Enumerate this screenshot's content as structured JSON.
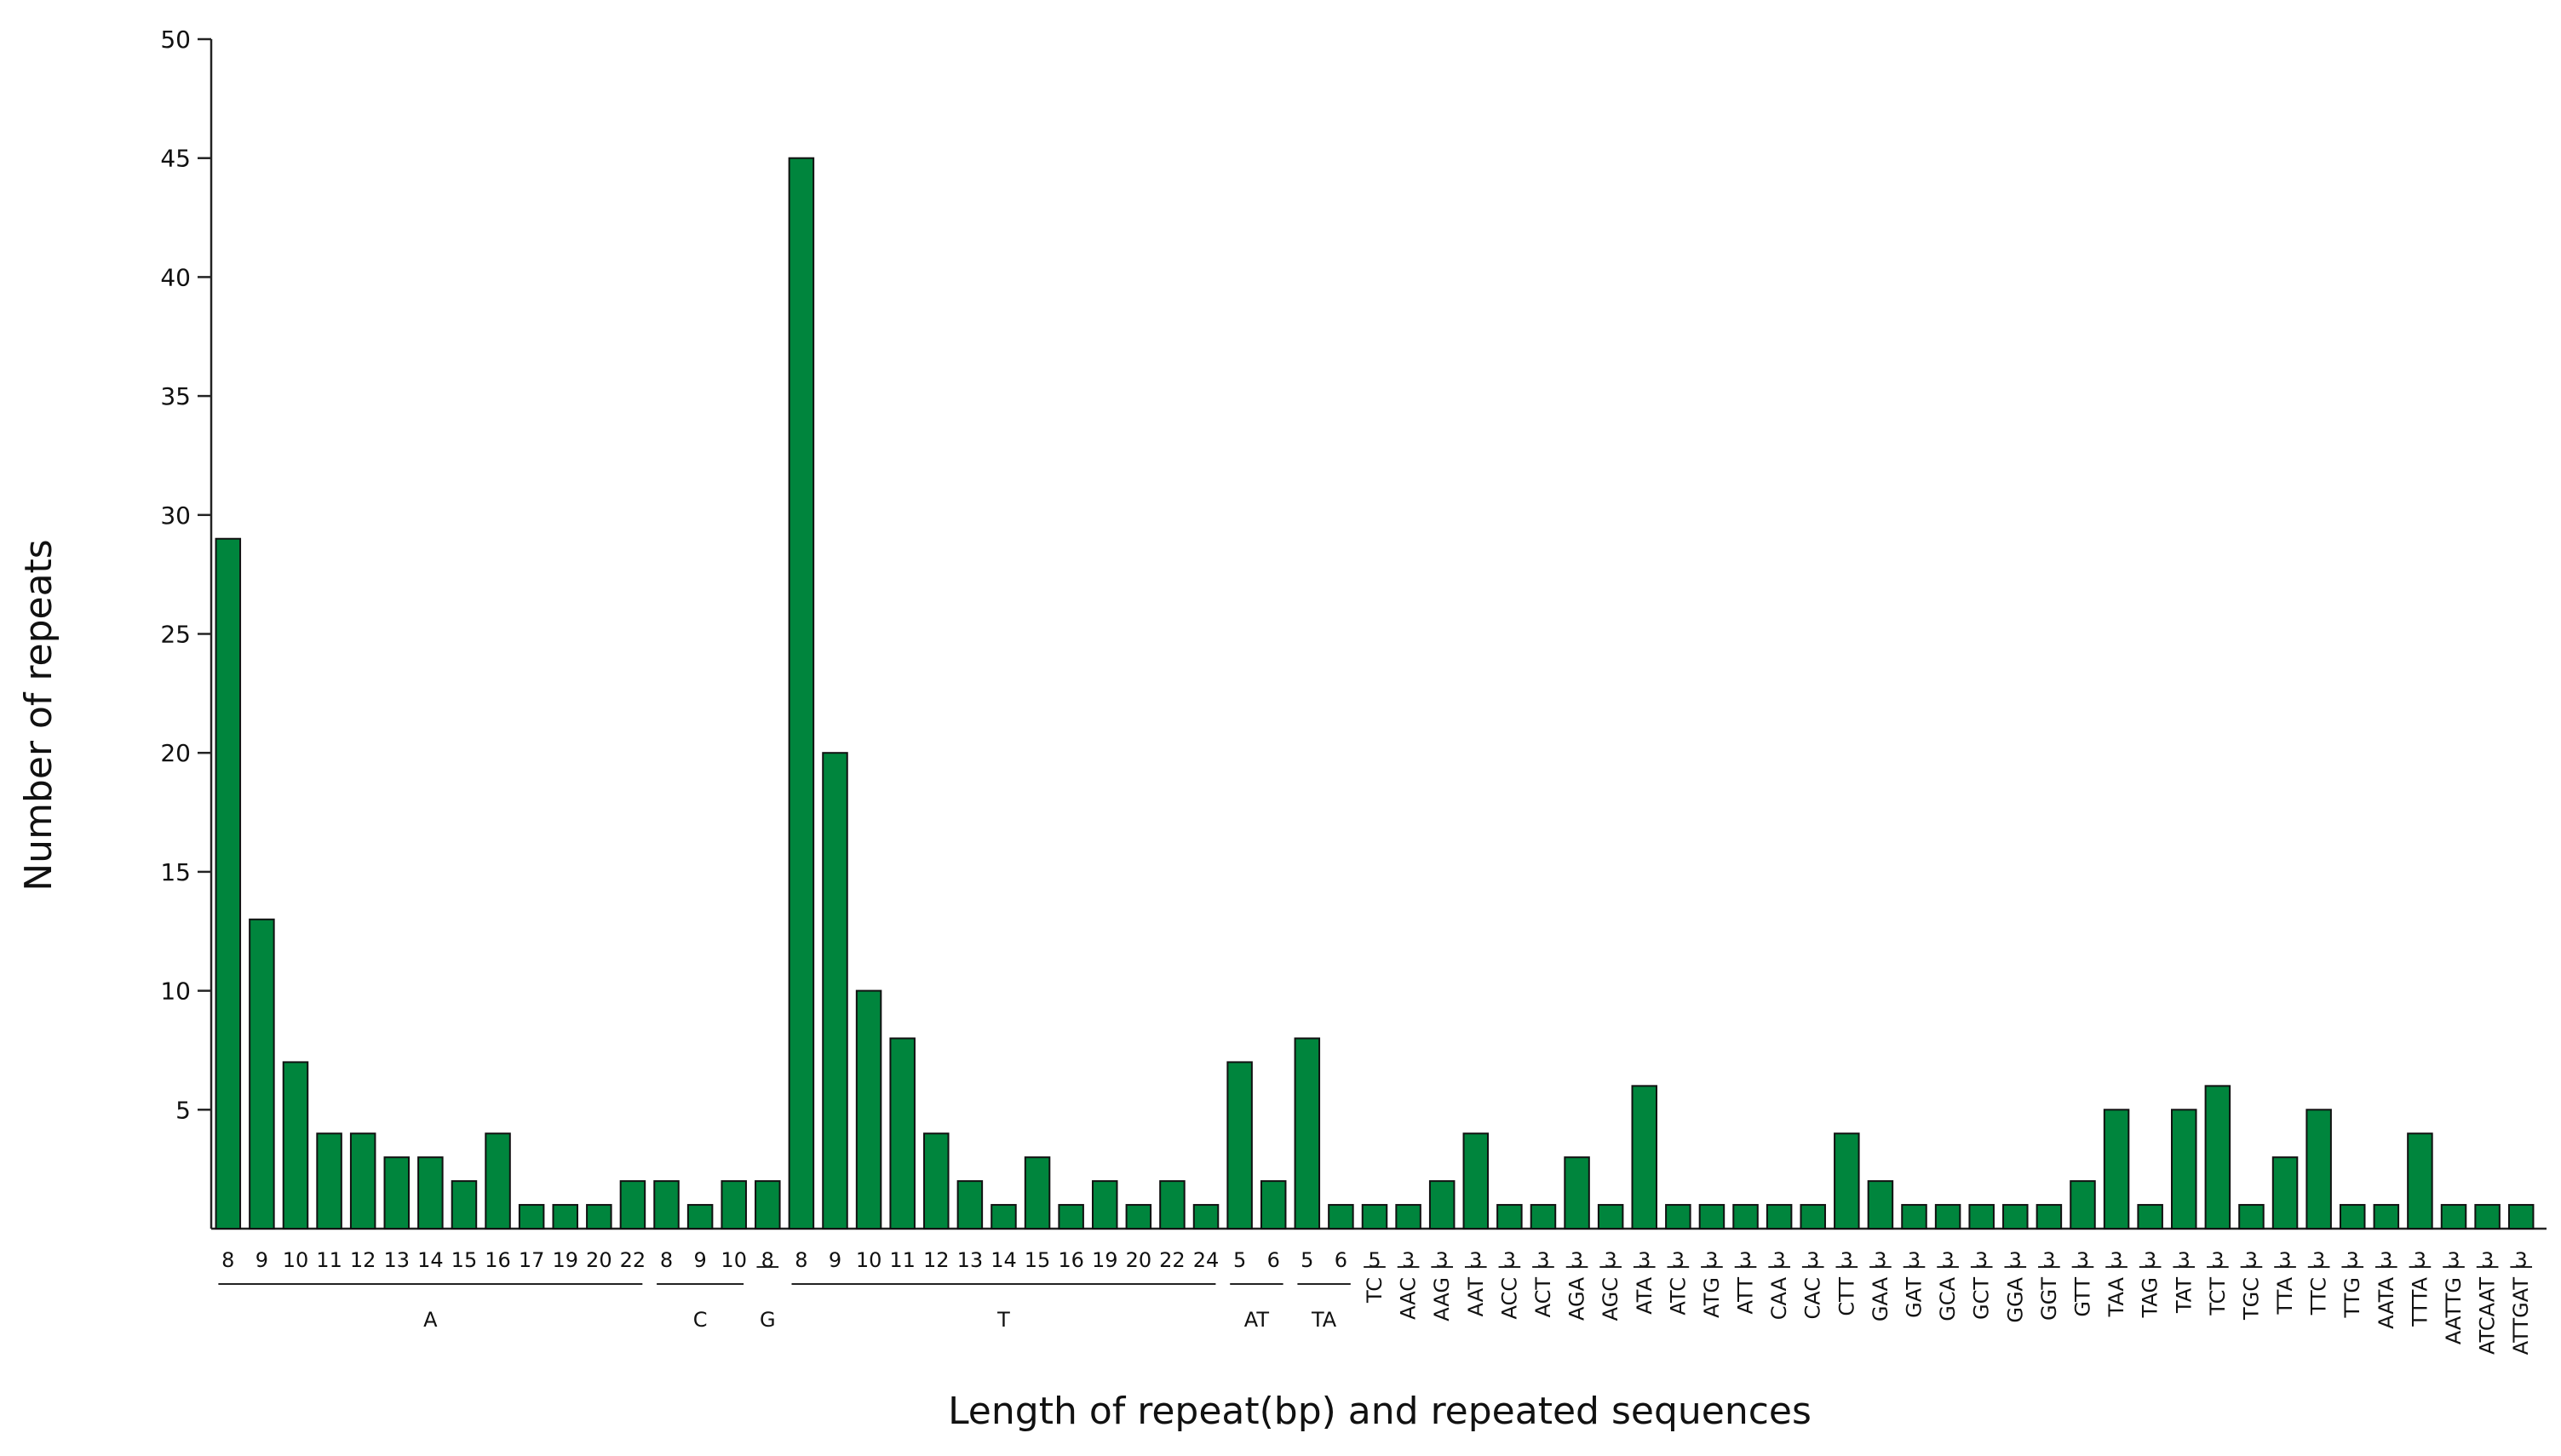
{
  "chart_data": {
    "type": "bar",
    "title": "",
    "xlabel": "Length of repeat(bp) and repeated sequences",
    "ylabel": "Number of repeats",
    "ylim": [
      0,
      50
    ],
    "yticks": [
      5,
      10,
      15,
      20,
      25,
      30,
      35,
      40,
      45,
      50
    ],
    "grid": false,
    "legend": "none",
    "bar_color": "#00853d",
    "groups": [
      {
        "name": "A",
        "categories": [
          "8",
          "9",
          "10",
          "11",
          "12",
          "13",
          "14",
          "15",
          "16",
          "17",
          "19",
          "20",
          "22"
        ],
        "values": [
          29,
          13,
          7,
          4,
          4,
          3,
          3,
          2,
          4,
          1,
          1,
          1,
          2
        ]
      },
      {
        "name": "C",
        "categories": [
          "8",
          "9",
          "10"
        ],
        "values": [
          2,
          1,
          2
        ]
      },
      {
        "name": "G",
        "categories": [
          "8"
        ],
        "values": [
          2
        ]
      },
      {
        "name": "T",
        "categories": [
          "8",
          "9",
          "10",
          "11",
          "12",
          "13",
          "14",
          "15",
          "16",
          "19",
          "20",
          "22",
          "24"
        ],
        "values": [
          45,
          20,
          10,
          8,
          4,
          2,
          1,
          3,
          1,
          2,
          1,
          2,
          1
        ]
      },
      {
        "name": "AT",
        "categories": [
          "5",
          "6"
        ],
        "values": [
          7,
          2
        ]
      },
      {
        "name": "TA",
        "categories": [
          "5",
          "6"
        ],
        "values": [
          8,
          1
        ]
      },
      {
        "name": "TC",
        "categories": [
          "5"
        ],
        "values": [
          1
        ]
      },
      {
        "name": "AAC",
        "categories": [
          "3"
        ],
        "values": [
          1
        ]
      },
      {
        "name": "AAG",
        "categories": [
          "3"
        ],
        "values": [
          2
        ]
      },
      {
        "name": "AAT",
        "categories": [
          "3"
        ],
        "values": [
          4
        ]
      },
      {
        "name": "ACC",
        "categories": [
          "3"
        ],
        "values": [
          1
        ]
      },
      {
        "name": "ACT",
        "categories": [
          "3"
        ],
        "values": [
          1
        ]
      },
      {
        "name": "AGA",
        "categories": [
          "3"
        ],
        "values": [
          3
        ]
      },
      {
        "name": "AGC",
        "categories": [
          "3"
        ],
        "values": [
          1
        ]
      },
      {
        "name": "ATA",
        "categories": [
          "3"
        ],
        "values": [
          6
        ]
      },
      {
        "name": "ATC",
        "categories": [
          "3"
        ],
        "values": [
          1
        ]
      },
      {
        "name": "ATG",
        "categories": [
          "3"
        ],
        "values": [
          1
        ]
      },
      {
        "name": "ATT",
        "categories": [
          "3"
        ],
        "values": [
          1
        ]
      },
      {
        "name": "CAA",
        "categories": [
          "3"
        ],
        "values": [
          1
        ]
      },
      {
        "name": "CAC",
        "categories": [
          "3"
        ],
        "values": [
          1
        ]
      },
      {
        "name": "CTT",
        "categories": [
          "3"
        ],
        "values": [
          4
        ]
      },
      {
        "name": "GAA",
        "categories": [
          "3"
        ],
        "values": [
          2
        ]
      },
      {
        "name": "GAT",
        "categories": [
          "3"
        ],
        "values": [
          1
        ]
      },
      {
        "name": "GCA",
        "categories": [
          "3"
        ],
        "values": [
          1
        ]
      },
      {
        "name": "GCT",
        "categories": [
          "3"
        ],
        "values": [
          1
        ]
      },
      {
        "name": "GGA",
        "categories": [
          "3"
        ],
        "values": [
          1
        ]
      },
      {
        "name": "GGT",
        "categories": [
          "3"
        ],
        "values": [
          1
        ]
      },
      {
        "name": "GTT",
        "categories": [
          "3"
        ],
        "values": [
          2
        ]
      },
      {
        "name": "TAA",
        "categories": [
          "3"
        ],
        "values": [
          5
        ]
      },
      {
        "name": "TAG",
        "categories": [
          "3"
        ],
        "values": [
          1
        ]
      },
      {
        "name": "TAT",
        "categories": [
          "3"
        ],
        "values": [
          5
        ]
      },
      {
        "name": "TCT",
        "categories": [
          "3"
        ],
        "values": [
          6
        ]
      },
      {
        "name": "TGC",
        "categories": [
          "3"
        ],
        "values": [
          1
        ]
      },
      {
        "name": "TTA",
        "categories": [
          "3"
        ],
        "values": [
          3
        ]
      },
      {
        "name": "TTC",
        "categories": [
          "3"
        ],
        "values": [
          5
        ]
      },
      {
        "name": "TTG",
        "categories": [
          "3"
        ],
        "values": [
          1
        ]
      },
      {
        "name": "AATA",
        "categories": [
          "3"
        ],
        "values": [
          1
        ]
      },
      {
        "name": "TTTA",
        "categories": [
          "3"
        ],
        "values": [
          4
        ]
      },
      {
        "name": "AATTG",
        "categories": [
          "3"
        ],
        "values": [
          1
        ]
      },
      {
        "name": "ATCAAT",
        "categories": [
          "3"
        ],
        "values": [
          1
        ]
      },
      {
        "name": "ATTGAT",
        "categories": [
          "3"
        ],
        "values": [
          1
        ]
      }
    ]
  }
}
